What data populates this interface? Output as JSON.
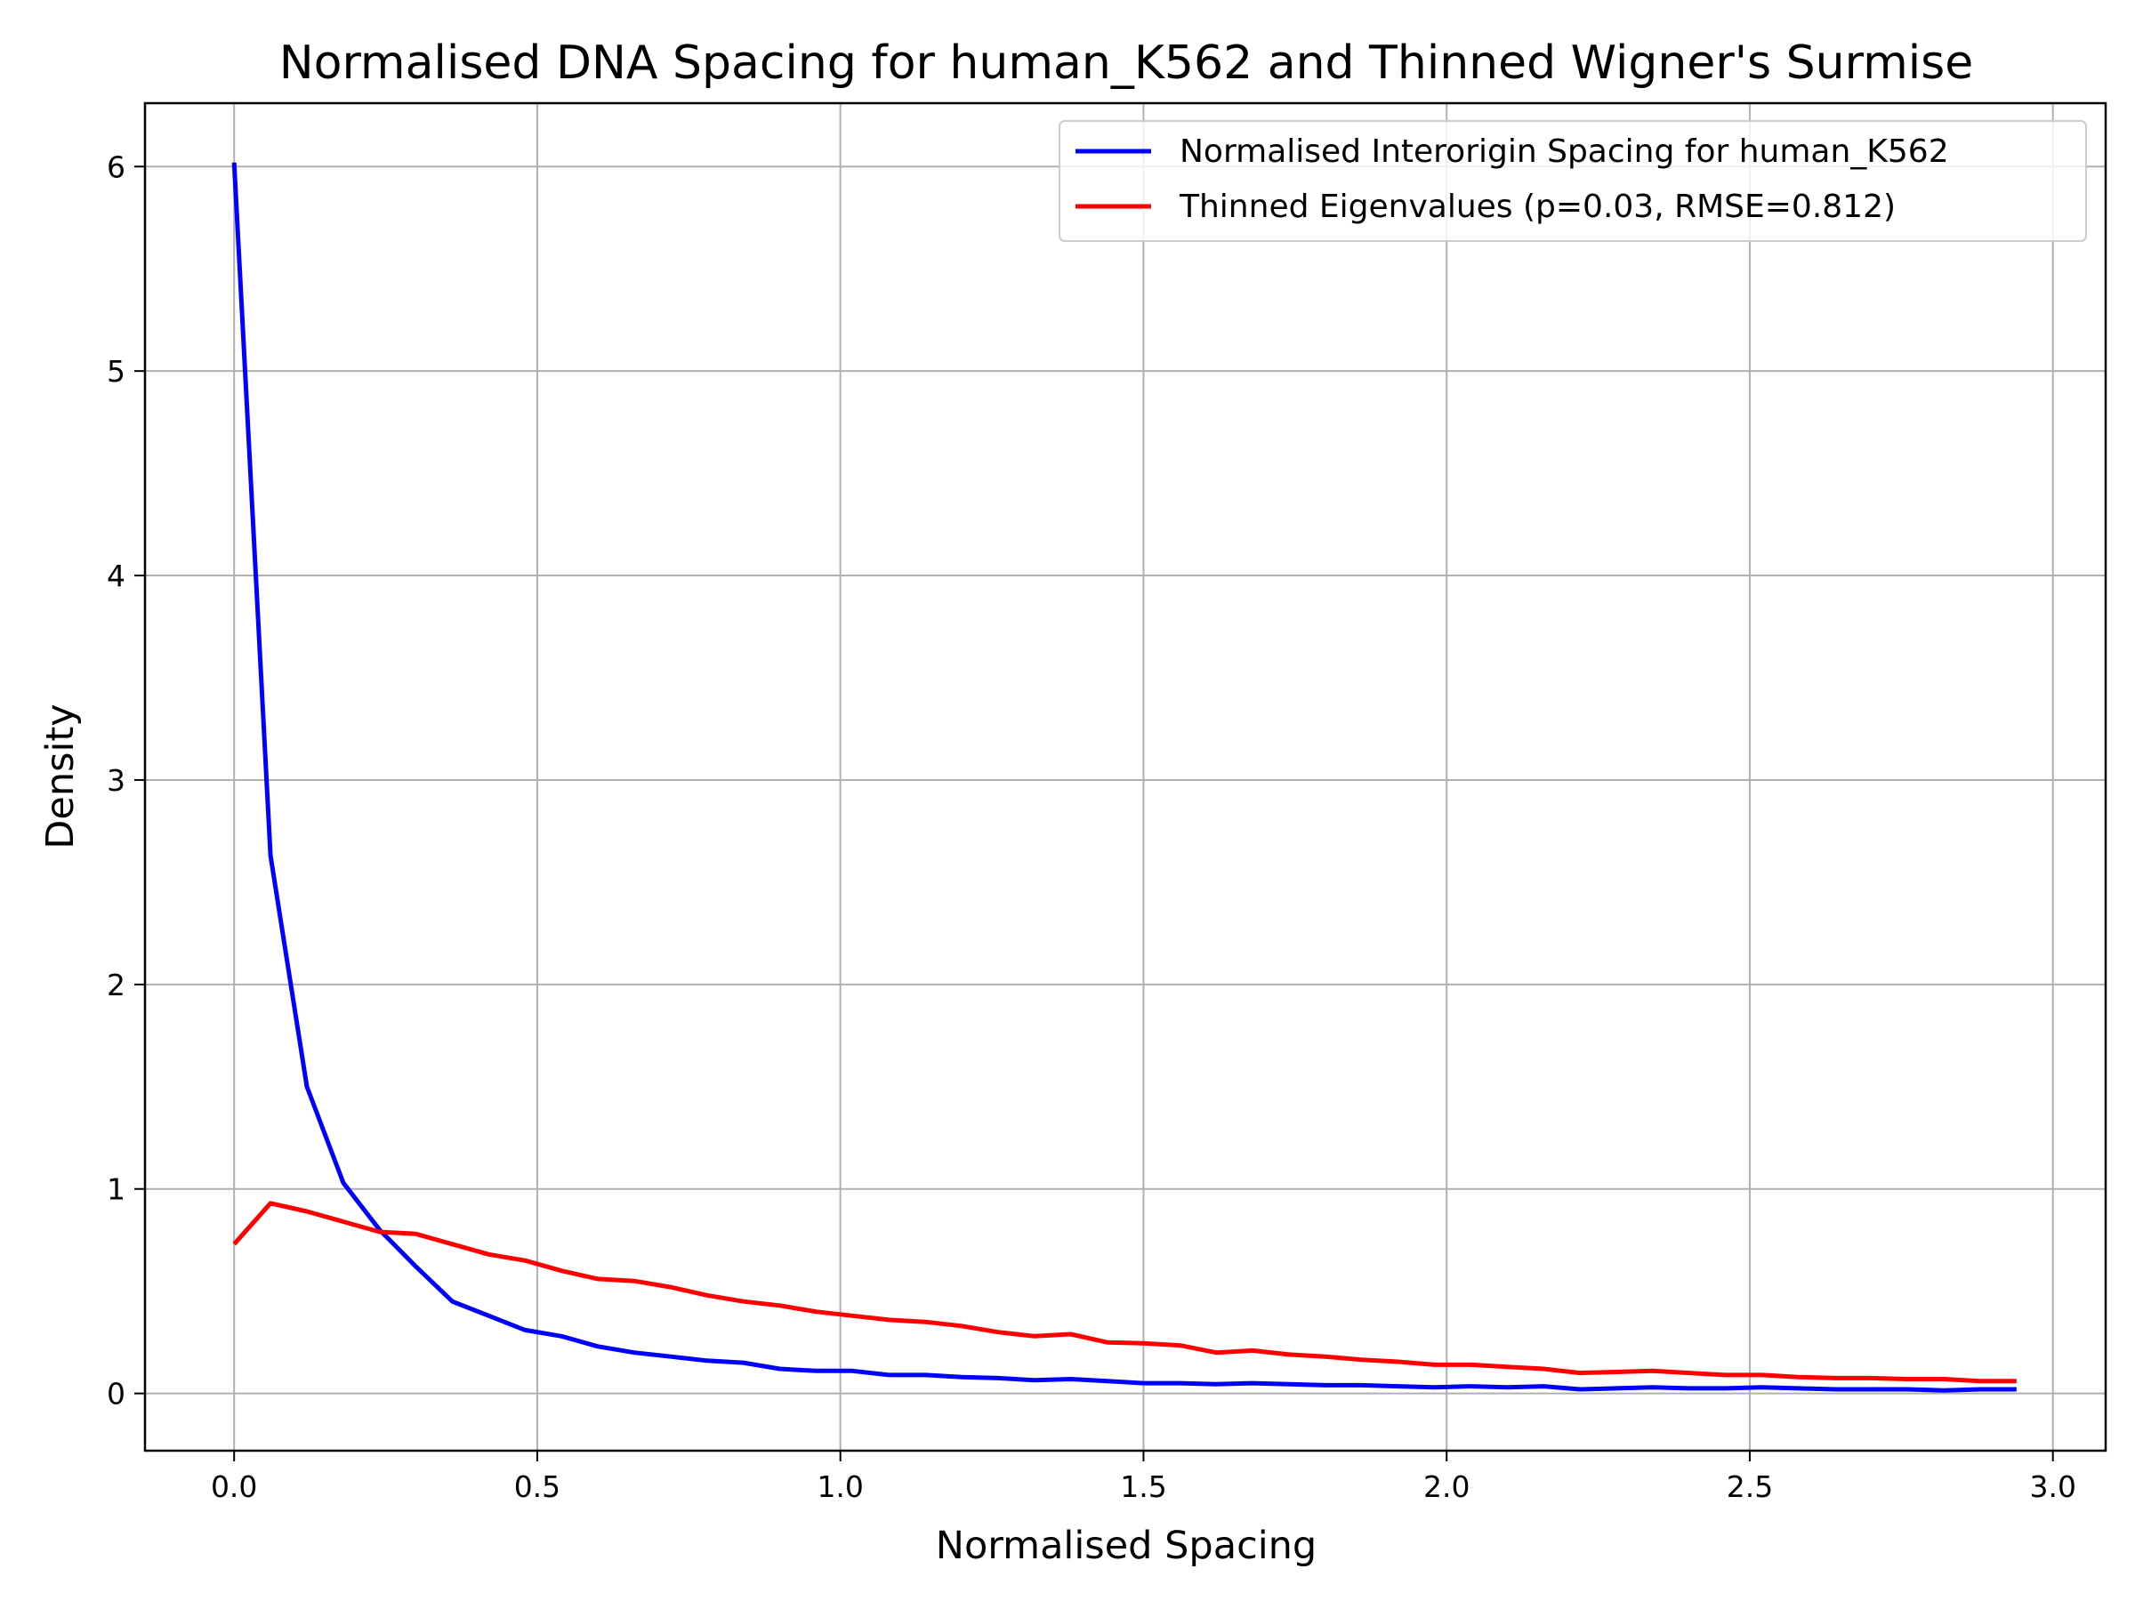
{
  "chart_data": {
    "type": "line",
    "title": "Normalised DNA Spacing for human_K562 and Thinned Wigner's Surmise",
    "xlabel": "Normalised Spacing",
    "ylabel": "Density",
    "xlim": [
      -0.147,
      3.087
    ],
    "ylim": [
      -0.28,
      6.31
    ],
    "xticks": [
      0.0,
      0.5,
      1.0,
      1.5,
      2.0,
      2.5,
      3.0
    ],
    "xtick_labels": [
      "0.0",
      "0.5",
      "1.0",
      "1.5",
      "2.0",
      "2.5",
      "3.0"
    ],
    "yticks": [
      0,
      1,
      2,
      3,
      4,
      5,
      6
    ],
    "ytick_labels": [
      "0",
      "1",
      "2",
      "3",
      "4",
      "5",
      "6"
    ],
    "grid": true,
    "legend_position": "upper right",
    "series": [
      {
        "name": "Normalised Interorigin Spacing for human_K562",
        "color": "#0000ff",
        "x": [
          0.0,
          0.06,
          0.12,
          0.18,
          0.24,
          0.3,
          0.36,
          0.42,
          0.48,
          0.54,
          0.6,
          0.66,
          0.72,
          0.78,
          0.84,
          0.9,
          0.96,
          1.02,
          1.08,
          1.14,
          1.2,
          1.26,
          1.32,
          1.38,
          1.44,
          1.5,
          1.56,
          1.62,
          1.68,
          1.74,
          1.8,
          1.86,
          1.92,
          1.98,
          2.04,
          2.1,
          2.16,
          2.22,
          2.28,
          2.34,
          2.4,
          2.46,
          2.52,
          2.58,
          2.64,
          2.7,
          2.76,
          2.82,
          2.88,
          2.94
        ],
        "y": [
          6.02,
          2.63,
          1.5,
          1.03,
          0.8,
          0.62,
          0.45,
          0.38,
          0.31,
          0.28,
          0.23,
          0.2,
          0.18,
          0.16,
          0.15,
          0.12,
          0.11,
          0.11,
          0.09,
          0.09,
          0.08,
          0.075,
          0.065,
          0.07,
          0.06,
          0.05,
          0.05,
          0.045,
          0.05,
          0.045,
          0.04,
          0.04,
          0.035,
          0.03,
          0.035,
          0.03,
          0.035,
          0.02,
          0.025,
          0.03,
          0.025,
          0.025,
          0.03,
          0.025,
          0.02,
          0.02,
          0.02,
          0.015,
          0.02,
          0.02
        ]
      },
      {
        "name": "Thinned Eigenvalues (p=0.03, RMSE=0.812)",
        "color": "#ff0000",
        "x": [
          0.0,
          0.06,
          0.12,
          0.18,
          0.24,
          0.3,
          0.36,
          0.42,
          0.48,
          0.54,
          0.6,
          0.66,
          0.72,
          0.78,
          0.84,
          0.9,
          0.96,
          1.02,
          1.08,
          1.14,
          1.2,
          1.26,
          1.32,
          1.38,
          1.44,
          1.5,
          1.56,
          1.62,
          1.68,
          1.74,
          1.8,
          1.86,
          1.92,
          1.98,
          2.04,
          2.1,
          2.16,
          2.22,
          2.28,
          2.34,
          2.4,
          2.46,
          2.52,
          2.58,
          2.64,
          2.7,
          2.76,
          2.82,
          2.88,
          2.94
        ],
        "y": [
          0.73,
          0.93,
          0.89,
          0.84,
          0.79,
          0.78,
          0.73,
          0.68,
          0.65,
          0.6,
          0.56,
          0.55,
          0.52,
          0.48,
          0.45,
          0.43,
          0.4,
          0.38,
          0.36,
          0.35,
          0.33,
          0.3,
          0.28,
          0.29,
          0.25,
          0.245,
          0.235,
          0.2,
          0.21,
          0.19,
          0.18,
          0.165,
          0.155,
          0.14,
          0.14,
          0.13,
          0.12,
          0.1,
          0.105,
          0.11,
          0.1,
          0.09,
          0.09,
          0.08,
          0.075,
          0.075,
          0.07,
          0.07,
          0.06,
          0.06
        ]
      }
    ]
  }
}
